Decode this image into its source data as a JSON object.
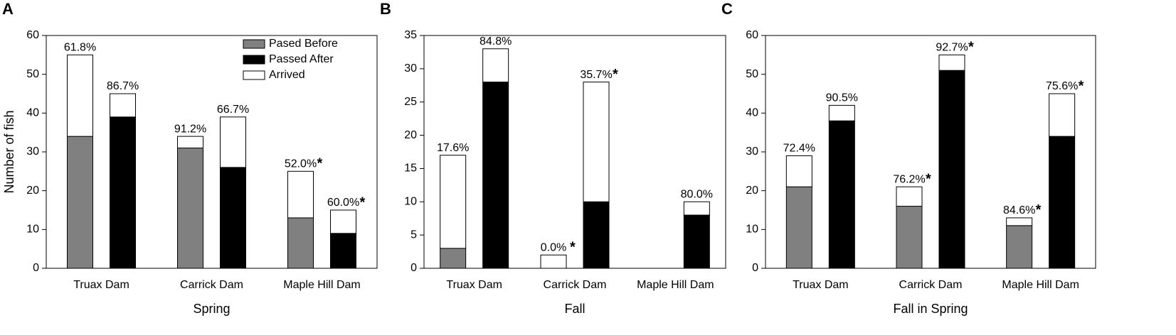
{
  "chart_data": [
    {
      "type": "stacked-bar-pair",
      "label": "A",
      "xlabel": "Spring",
      "ylabel": "Number of fish",
      "categories": [
        "Truax Dam",
        "Carrick Dam",
        "Maple Hill Dam"
      ],
      "ylim": [
        0,
        60
      ],
      "yticks": [
        0,
        10,
        20,
        30,
        40,
        50,
        60
      ],
      "legend": "upper right",
      "series": [
        {
          "name": "Pased Before",
          "color": "#808080",
          "values": [
            34,
            31,
            13
          ]
        },
        {
          "name": "Passed After",
          "color": "#000000",
          "values": [
            39,
            26,
            9
          ]
        },
        {
          "name": "Arrived",
          "color": "#ffffff",
          "values_before": [
            21,
            3,
            12
          ],
          "values_after": [
            6,
            13,
            6
          ]
        }
      ],
      "labels_before": [
        "61.8%",
        "91.2%",
        "52.0%"
      ],
      "labels_after": [
        "86.7%",
        "66.7%",
        "60.0%"
      ],
      "notes_before": [
        null,
        null,
        "*"
      ],
      "notes_after": [
        null,
        null,
        "*"
      ]
    },
    {
      "type": "stacked-bar-pair",
      "label": "B",
      "xlabel": "Fall",
      "categories": [
        "Truax Dam",
        "Carrick Dam",
        "Maple Hill Dam"
      ],
      "ylim": [
        0,
        35
      ],
      "yticks": [
        0,
        5,
        10,
        15,
        20,
        25,
        30,
        35
      ],
      "series": [
        {
          "color": "#808080",
          "values": [
            3,
            0,
            0
          ]
        },
        {
          "color": "#000000",
          "values": [
            28,
            10,
            8
          ]
        },
        {
          "color": "#ffffff",
          "values_before": [
            14,
            2,
            0
          ],
          "values_after": [
            5,
            18,
            2
          ]
        }
      ],
      "labels_before": [
        "17.6%",
        "0.0%",
        null
      ],
      "labels_after": [
        "84.8%",
        "35.7%",
        "80.0%"
      ],
      "notes_before": [
        null,
        "*",
        null
      ],
      "notes_after": [
        null,
        "*",
        null
      ]
    },
    {
      "type": "stacked-bar-pair",
      "label": "C",
      "xlabel": "Fall in Spring",
      "categories": [
        "Truax Dam",
        "Carrick Dam",
        "Maple Hill Dam"
      ],
      "ylim": [
        0,
        60
      ],
      "yticks": [
        0,
        10,
        20,
        30,
        40,
        50,
        60
      ],
      "series": [
        {
          "color": "#808080",
          "values": [
            21,
            16,
            11
          ]
        },
        {
          "color": "#000000",
          "values": [
            38,
            51,
            34
          ]
        },
        {
          "color": "#ffffff",
          "values_before": [
            8,
            5,
            2
          ],
          "values_after": [
            4,
            4,
            11
          ]
        }
      ],
      "labels_before": [
        "72.4%",
        "76.2%",
        "84.6%"
      ],
      "labels_after": [
        "90.5%",
        "92.7%",
        "75.6%"
      ],
      "notes_before": [
        null,
        "*",
        "*"
      ],
      "notes_after": [
        null,
        "*",
        "*"
      ]
    }
  ]
}
